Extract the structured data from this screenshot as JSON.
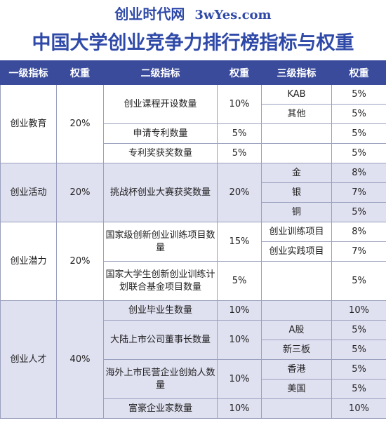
{
  "header": {
    "site_name": "创业时代网",
    "site_url": "3wYes.com",
    "title": "中国大学创业竞争力排行榜指标与权重"
  },
  "columns": [
    "一级指标",
    "权重",
    "二级指标",
    "权重",
    "三级指标",
    "权重"
  ],
  "groups": [
    {
      "name": "创业教育",
      "weight": "20%",
      "items": [
        {
          "name": "创业课程开设数量",
          "weight": "10%",
          "subs": [
            {
              "name": "KAB",
              "weight": "5%"
            },
            {
              "name": "其他",
              "weight": "5%"
            }
          ]
        },
        {
          "name": "申请专利数量",
          "weight": "5%",
          "subs": [
            {
              "name": "",
              "weight": "5%"
            }
          ]
        },
        {
          "name": "专利奖获奖数量",
          "weight": "5%",
          "subs": [
            {
              "name": "",
              "weight": "5%"
            }
          ]
        }
      ]
    },
    {
      "name": "创业活动",
      "weight": "20%",
      "items": [
        {
          "name": "挑战杯创业大赛获奖数量",
          "weight": "20%",
          "subs": [
            {
              "name": "金",
              "weight": "8%"
            },
            {
              "name": "银",
              "weight": "7%"
            },
            {
              "name": "铜",
              "weight": "5%"
            }
          ]
        }
      ]
    },
    {
      "name": "创业潜力",
      "weight": "20%",
      "items": [
        {
          "name": "国家级创新创业训练项目数量",
          "weight": "15%",
          "subs": [
            {
              "name": "创业训练项目",
              "weight": "8%"
            },
            {
              "name": "创业实践项目",
              "weight": "7%"
            }
          ]
        },
        {
          "name": "国家大学生创新创业训练计划联合基金项目数量",
          "weight": "5%",
          "subs": [
            {
              "name": "",
              "weight": "5%"
            }
          ]
        }
      ]
    },
    {
      "name": "创业人才",
      "weight": "40%",
      "items": [
        {
          "name": "创业毕业生数量",
          "weight": "10%",
          "subs": [
            {
              "name": "",
              "weight": "10%"
            }
          ]
        },
        {
          "name": "大陆上市公司董事长数量",
          "weight": "10%",
          "subs": [
            {
              "name": "A股",
              "weight": "5%"
            },
            {
              "name": "新三板",
              "weight": "5%"
            }
          ]
        },
        {
          "name": "海外上市民营企业创始人数量",
          "weight": "10%",
          "subs": [
            {
              "name": "香港",
              "weight": "5%"
            },
            {
              "name": "美国",
              "weight": "5%"
            }
          ]
        },
        {
          "name": "富豪企业家数量",
          "weight": "10%",
          "subs": [
            {
              "name": "",
              "weight": "10%"
            }
          ]
        }
      ]
    }
  ]
}
